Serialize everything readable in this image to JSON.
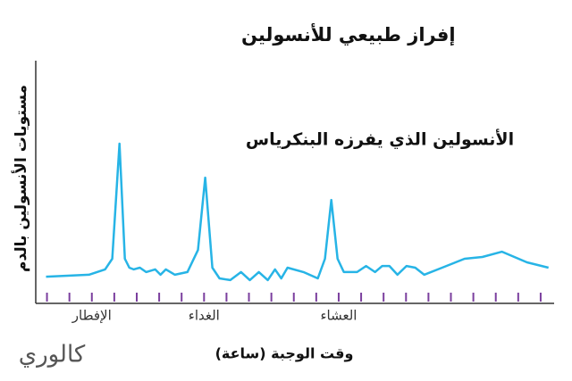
{
  "chart_data": {
    "type": "line",
    "title": "إفراز طبيعي للأنسولين",
    "y_label": "مستويات الأنسولين بالدم",
    "x_label": "وقت الوجبة (ساعة)",
    "annotation": "الأنسولين الذي يفرزه البنكرياس",
    "brand": "كالوري",
    "categories": [
      null,
      null,
      "الإفطار",
      null,
      null,
      null,
      null,
      "الغداء",
      null,
      null,
      null,
      null,
      null,
      "العشاء",
      null,
      null,
      null,
      null,
      null,
      null,
      null,
      null,
      null
    ],
    "xlim": [
      -0.5,
      22.6
    ],
    "ylim": [
      0,
      100
    ],
    "tick_color": "#7b3f9e",
    "series": [
      {
        "color": "#27b4e6",
        "x": [
          -0.04,
          1.87,
          2.59,
          2.91,
          3.23,
          3.47,
          3.67,
          3.86,
          4.14,
          4.42,
          4.82,
          5.06,
          5.3,
          5.7,
          6.26,
          6.73,
          7.05,
          7.37,
          7.69,
          8.17,
          8.65,
          9.04,
          9.44,
          9.84,
          10.16,
          10.44,
          10.72,
          11.43,
          12.07,
          12.39,
          12.67,
          12.95,
          13.23,
          13.82,
          14.22,
          14.62,
          14.94,
          15.26,
          15.62,
          16.02,
          16.41,
          16.81,
          17.61,
          18.61,
          19.4,
          20.28,
          21.39,
          22.35
        ],
        "values": [
          11,
          11.8,
          14,
          18.4,
          65.8,
          18.4,
          14.7,
          14,
          14.7,
          12.9,
          14,
          11.8,
          14,
          11.8,
          12.9,
          22,
          51.8,
          14.7,
          10.3,
          9.6,
          12.9,
          9.6,
          12.9,
          9.6,
          14,
          10.3,
          14.7,
          12.9,
          10.3,
          18.4,
          42.6,
          18.4,
          12.9,
          12.9,
          15.4,
          12.9,
          15.4,
          15.4,
          11.8,
          15.4,
          14.7,
          11.8,
          14.7,
          18.4,
          19.1,
          21.3,
          16.9,
          14.7
        ]
      }
    ]
  }
}
